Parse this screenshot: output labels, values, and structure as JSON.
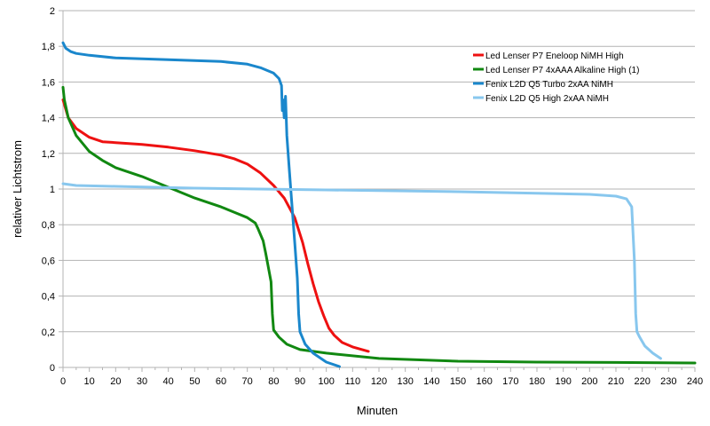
{
  "chart_data": {
    "type": "line",
    "title": "",
    "xlabel": "Minuten",
    "ylabel": "relativer Lichtstrom",
    "xlim": [
      0,
      240
    ],
    "ylim": [
      0,
      2
    ],
    "x_ticks": [
      0,
      10,
      20,
      30,
      40,
      50,
      60,
      70,
      80,
      90,
      100,
      110,
      120,
      130,
      140,
      150,
      160,
      170,
      180,
      190,
      200,
      210,
      220,
      230,
      240
    ],
    "y_ticks": [
      0,
      0.2,
      0.4,
      0.6,
      0.8,
      1,
      1.2,
      1.4,
      1.6,
      1.8,
      2
    ],
    "y_tick_labels": [
      "0",
      "0,2",
      "0,4",
      "0,6",
      "0,8",
      "1",
      "1,2",
      "1,4",
      "1,6",
      "1,8",
      "2"
    ],
    "grid": "horizontal",
    "legend_position": "top-right",
    "series": [
      {
        "name": "Led Lenser P7 Eneloop NiMH High",
        "color": "#ee1111",
        "x": [
          0,
          2,
          5,
          10,
          15,
          20,
          30,
          40,
          50,
          60,
          65,
          70,
          75,
          80,
          84,
          88,
          91,
          93,
          95,
          97,
          99,
          101,
          103,
          106,
          110,
          116
        ],
        "y": [
          1.5,
          1.4,
          1.34,
          1.29,
          1.265,
          1.26,
          1.25,
          1.235,
          1.215,
          1.19,
          1.17,
          1.14,
          1.09,
          1.02,
          0.95,
          0.84,
          0.7,
          0.58,
          0.47,
          0.37,
          0.29,
          0.22,
          0.18,
          0.14,
          0.115,
          0.09
        ]
      },
      {
        "name": "Led Lenser P7 4xAAA Alkaline High (1)",
        "color": "#118811",
        "x": [
          0,
          0.5,
          2,
          5,
          10,
          15,
          20,
          30,
          40,
          50,
          60,
          65,
          70,
          73,
          74,
          76,
          77,
          78,
          79,
          79.5,
          80,
          82,
          85,
          90,
          100,
          120,
          150,
          180,
          210,
          240
        ],
        "y": [
          1.57,
          1.5,
          1.4,
          1.3,
          1.21,
          1.16,
          1.12,
          1.07,
          1.01,
          0.95,
          0.9,
          0.87,
          0.84,
          0.81,
          0.78,
          0.71,
          0.64,
          0.56,
          0.48,
          0.3,
          0.21,
          0.17,
          0.13,
          0.1,
          0.08,
          0.05,
          0.035,
          0.03,
          0.028,
          0.025
        ]
      },
      {
        "name": "Fenix L2D Q5 Turbo 2xAA NiMH",
        "color": "#1a87cc",
        "x": [
          0,
          1,
          3,
          5,
          10,
          20,
          30,
          40,
          50,
          60,
          70,
          75,
          80,
          82,
          83,
          83.3,
          83.6,
          84,
          84.5,
          85,
          86,
          87,
          88,
          89,
          89.5,
          90,
          92,
          95,
          100,
          105
        ],
        "y": [
          1.82,
          1.79,
          1.77,
          1.76,
          1.75,
          1.735,
          1.73,
          1.725,
          1.72,
          1.715,
          1.7,
          1.68,
          1.65,
          1.62,
          1.58,
          1.44,
          1.5,
          1.4,
          1.52,
          1.3,
          1.1,
          0.9,
          0.7,
          0.5,
          0.3,
          0.2,
          0.13,
          0.08,
          0.03,
          0.005
        ]
      },
      {
        "name": "Fenix L2D Q5 High 2xAA NiMH",
        "color": "#88c7ee",
        "x": [
          0,
          5,
          20,
          50,
          100,
          150,
          200,
          210,
          214,
          216,
          217,
          217.5,
          218,
          219,
          221,
          224,
          227
        ],
        "y": [
          1.03,
          1.02,
          1.015,
          1.005,
          0.995,
          0.985,
          0.97,
          0.96,
          0.945,
          0.9,
          0.6,
          0.3,
          0.2,
          0.17,
          0.12,
          0.08,
          0.05
        ]
      }
    ]
  }
}
